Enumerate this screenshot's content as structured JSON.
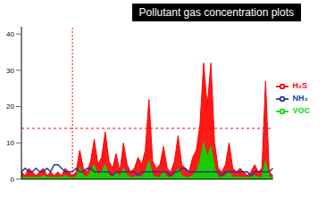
{
  "chart_data": {
    "type": "line",
    "title": "Pollutant gas concentration plots",
    "categories": [
      null,
      null,
      null,
      null,
      null,
      null,
      null,
      null,
      null,
      null,
      null,
      null,
      null,
      null,
      null,
      null,
      null,
      null,
      null,
      null,
      null,
      null,
      null,
      null,
      null,
      null,
      null,
      null,
      null,
      null,
      null,
      null,
      null,
      null,
      null,
      null,
      null,
      null,
      null,
      null,
      null,
      null,
      null,
      null,
      null,
      null,
      null,
      null,
      null,
      null,
      null,
      null,
      null,
      null,
      null,
      null,
      null,
      null,
      null,
      null,
      null,
      null,
      null,
      null,
      null,
      null,
      null,
      null,
      null,
      null
    ],
    "series": [
      {
        "name": "NH₃",
        "color": "#1f3a93",
        "type": "line",
        "values": [
          2,
          3,
          2,
          2,
          3,
          2,
          2,
          3,
          2,
          4,
          4,
          3,
          2,
          2,
          2,
          3,
          2,
          2,
          3,
          3,
          2,
          2,
          2,
          2,
          2,
          1,
          2,
          2,
          2,
          2,
          2,
          2,
          1,
          2,
          2,
          2,
          2,
          2,
          2,
          2,
          2,
          1,
          2,
          2,
          3,
          3,
          2,
          2,
          2,
          2,
          2,
          2,
          2,
          2,
          2,
          1,
          2,
          2,
          2,
          2,
          2,
          2,
          2,
          1,
          2,
          2,
          2,
          2,
          2,
          3
        ]
      },
      {
        "name": "H₂S",
        "color": "#ff0000",
        "type": "area",
        "values": [
          2,
          1,
          3,
          2,
          1,
          2,
          3,
          1,
          2,
          1,
          2,
          1,
          3,
          2,
          1,
          2,
          8,
          3,
          2,
          5,
          11,
          4,
          6,
          13,
          5,
          3,
          7,
          2,
          10,
          4,
          2,
          3,
          6,
          4,
          8,
          22,
          5,
          3,
          4,
          9,
          3,
          2,
          5,
          12,
          4,
          3,
          2,
          6,
          8,
          15,
          32,
          20,
          32,
          10,
          3,
          2,
          4,
          10,
          3,
          2,
          3,
          2,
          1,
          2,
          4,
          2,
          3,
          27,
          2,
          1
        ]
      },
      {
        "name": "VOC",
        "color": "#00e000",
        "type": "area",
        "values": [
          0.5,
          0.5,
          0.5,
          0.5,
          0.5,
          0.5,
          1,
          0.5,
          0.5,
          0.5,
          0.5,
          0.5,
          1,
          0.5,
          0.5,
          0.5,
          3,
          1,
          0.5,
          2,
          4,
          1,
          2,
          4,
          1,
          0.5,
          2,
          0.5,
          3,
          1,
          0.5,
          0.5,
          1,
          0.5,
          2,
          5,
          1,
          0.5,
          0.5,
          2,
          0.5,
          0.5,
          1,
          3,
          1,
          0.5,
          0.5,
          1,
          2,
          5,
          10,
          6,
          9,
          3,
          0.5,
          0.5,
          1,
          2,
          0.5,
          0.5,
          0.5,
          0.5,
          0.5,
          0.5,
          1,
          0.5,
          0.5,
          5,
          0.5,
          0.5
        ]
      }
    ],
    "ylim": [
      0,
      42
    ],
    "yticks": [
      0,
      10,
      20,
      30,
      40
    ],
    "reference_lines": {
      "y": 14,
      "x": 14
    },
    "grid": false,
    "legend": "right",
    "tick_labels": "y"
  }
}
